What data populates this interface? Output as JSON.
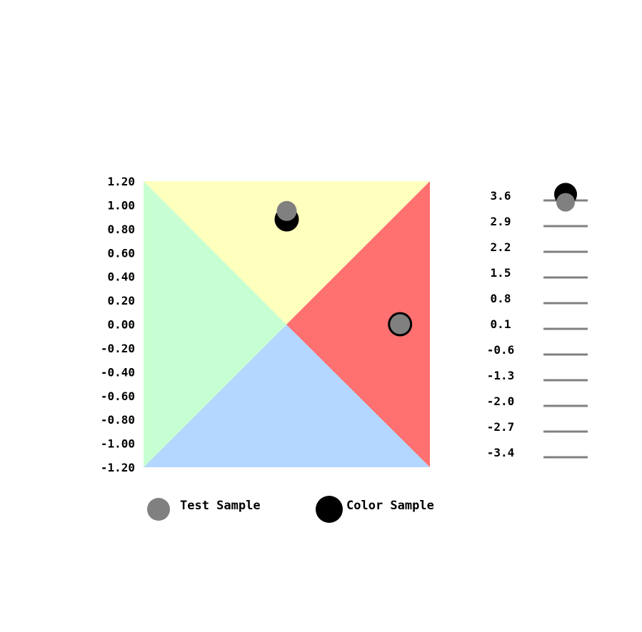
{
  "chart_data": {
    "type": "scatter",
    "colors": {
      "top": "#ffffbe",
      "right": "#ff7070",
      "bottom": "#b4d7ff",
      "left": "#c8ffd2",
      "test_sample": "#808080",
      "color_sample": "#000000",
      "scale_line": "#808080"
    },
    "plane": {
      "xlim": [
        -1.2,
        1.2
      ],
      "ylim": [
        -1.2,
        1.2
      ],
      "yticks": [
        "1.20",
        "1.00",
        "0.80",
        "0.60",
        "0.40",
        "0.20",
        "0.00",
        "-0.20",
        "-0.40",
        "-0.60",
        "-0.80",
        "-1.00",
        "-1.20"
      ],
      "ytick_values": [
        1.2,
        1.0,
        0.8,
        0.6,
        0.4,
        0.2,
        0.0,
        -0.2,
        -0.4,
        -0.6,
        -0.8,
        -1.0,
        -1.2
      ],
      "points": [
        {
          "series": "Color Sample",
          "x": 0.0,
          "y": 0.88
        },
        {
          "series": "Test Sample",
          "x": 0.0,
          "y": 0.95
        },
        {
          "series": "Color Sample",
          "x": 0.95,
          "y": 0.0
        },
        {
          "series": "Test Sample",
          "x": 0.95,
          "y": 0.0
        }
      ]
    },
    "scale": {
      "ylim": [
        -3.4,
        3.6
      ],
      "ticks": [
        "3.6",
        "2.9",
        "2.2",
        "1.5",
        "0.8",
        "0.1",
        "-0.6",
        "-1.3",
        "-2.0",
        "-2.7",
        "-3.4"
      ],
      "tick_values": [
        3.6,
        2.9,
        2.2,
        1.5,
        0.8,
        0.1,
        -0.6,
        -1.3,
        -2.0,
        -2.7,
        -3.4
      ],
      "points": [
        {
          "series": "Color Sample",
          "value": 3.65
        },
        {
          "series": "Test Sample",
          "value": 3.55
        }
      ]
    },
    "legend": [
      {
        "label": "Test Sample",
        "color": "#808080"
      },
      {
        "label": "Color Sample",
        "color": "#000000"
      }
    ]
  }
}
